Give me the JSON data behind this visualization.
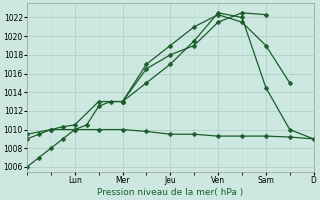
{
  "xlabel": "Pression niveau de la mer( hPa )",
  "bg_color": "#cce8e0",
  "grid_color_major": "#aaccc4",
  "grid_color_minor": "#bbddd6",
  "line_color": "#1a5c2a",
  "ylim": [
    1005.5,
    1023.5
  ],
  "yticks": [
    1006,
    1008,
    1010,
    1012,
    1014,
    1016,
    1018,
    1020,
    1022
  ],
  "xlim": [
    0,
    12
  ],
  "xtick_pos": [
    2,
    4,
    6,
    8,
    10,
    12
  ],
  "xtick_labels": [
    "Lun",
    "Mer",
    "Jeu",
    "Ven",
    "Sam",
    "D"
  ],
  "line1_x": [
    0,
    0.5,
    1,
    1.5,
    2,
    2.5,
    3,
    3.5,
    4,
    5,
    6,
    7,
    8,
    9,
    10
  ],
  "line1_y": [
    1006,
    1007,
    1008,
    1009,
    1010,
    1010.5,
    1012.5,
    1013,
    1013,
    1016.5,
    1018,
    1019,
    1021.5,
    1022.5,
    1022.3
  ],
  "line2_x": [
    0,
    0.5,
    1,
    1.5,
    2,
    3,
    4,
    5,
    6,
    7,
    8,
    9,
    10,
    11
  ],
  "line2_y": [
    1009,
    1009.5,
    1010,
    1010.3,
    1010.5,
    1013,
    1013,
    1017,
    1019,
    1021,
    1022.3,
    1021.5,
    1019,
    1015
  ],
  "line3_x": [
    0,
    1,
    2,
    3,
    4,
    5,
    6,
    7,
    8,
    9,
    10,
    11,
    12
  ],
  "line3_y": [
    1009.5,
    1010,
    1010,
    1010,
    1010,
    1009.8,
    1009.5,
    1009.5,
    1009.3,
    1009.3,
    1009.3,
    1009.2,
    1009.0
  ],
  "line4_x": [
    4,
    5,
    6,
    7,
    8,
    9,
    10,
    11,
    12
  ],
  "line4_y": [
    1013,
    1015,
    1017,
    1019.5,
    1022.5,
    1022,
    1014.5,
    1010,
    1009
  ]
}
